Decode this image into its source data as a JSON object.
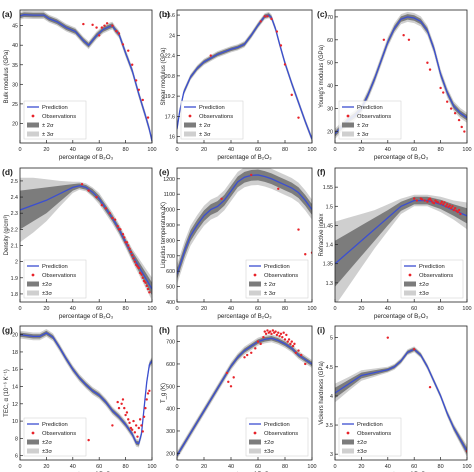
{
  "colors": {
    "prediction": "#3b4fd1",
    "observations": "#e8232a",
    "band2": "#7c7c7c",
    "band3": "#cfcfcf"
  },
  "chart_data": [
    {
      "type": "line",
      "panel": "(a)",
      "xlabel": "percentage of B₂O₃",
      "ylabel": "Bulk modulus (GPa)",
      "xlim": [
        0,
        100
      ],
      "ylim": [
        15,
        49
      ],
      "xticks": [
        0,
        20,
        40,
        60,
        80,
        100
      ],
      "yticks": [
        20,
        25,
        30,
        35,
        40,
        45
      ],
      "legend": {
        "placement": "bottom-left",
        "entries": [
          "Prediction",
          "Observations",
          "± 2σ",
          "± 3σ"
        ]
      },
      "prediction": {
        "x": [
          0,
          3,
          10,
          18,
          22,
          28,
          35,
          42,
          48,
          52,
          58,
          63,
          68,
          70,
          72,
          75,
          80,
          85,
          90,
          95,
          98,
          100
        ],
        "y": [
          47.5,
          47.8,
          47.7,
          47.7,
          46.8,
          46,
          44.5,
          43.5,
          41.2,
          40,
          42.5,
          44,
          44.8,
          45,
          44,
          42.8,
          38,
          33.5,
          27.5,
          22,
          18.5,
          15.5
        ]
      },
      "band2_halfwidth": 0.6,
      "band3_halfwidth": 1.0,
      "observations": {
        "x": [
          48,
          55,
          58,
          60,
          62,
          64,
          66,
          70,
          73,
          75,
          78,
          82,
          85,
          88,
          90,
          93,
          97
        ],
        "y": [
          45.4,
          45.2,
          44.5,
          42.5,
          44.5,
          45,
          45.6,
          45,
          43.6,
          43,
          40.2,
          38.6,
          35,
          31,
          28.6,
          26,
          21.5
        ]
      }
    },
    {
      "type": "line",
      "panel": "(b)",
      "xlabel": "percentage of B₂O₃",
      "ylabel": "Shear modulus (GPa)",
      "xlim": [
        0,
        100
      ],
      "ylim": [
        15.5,
        26
      ],
      "xticks": [
        0,
        20,
        40,
        60,
        80,
        100
      ],
      "yticks": [
        16.0,
        17.6,
        19.2,
        20.8,
        22.4,
        24.0,
        25.6
      ],
      "legend": {
        "placement": "bottom-left",
        "entries": [
          "Prediction",
          "Observations",
          "± 2σ",
          "± 3σ"
        ]
      },
      "prediction": {
        "x": [
          0,
          2,
          5,
          10,
          15,
          20,
          25,
          30,
          35,
          40,
          45,
          50,
          55,
          60,
          65,
          68,
          70,
          73,
          76,
          80,
          85,
          90,
          95,
          100
        ],
        "y": [
          16.6,
          18,
          19.5,
          20.7,
          21.4,
          21.9,
          22.2,
          22.5,
          22.7,
          22.9,
          23.05,
          23.3,
          24,
          24.8,
          25.5,
          25.6,
          25.4,
          24.5,
          23.3,
          21.8,
          20.2,
          18.7,
          17.2,
          15.8
        ]
      },
      "band2_halfwidth": 0.15,
      "band3_halfwidth": 0.25,
      "observations": {
        "x": [
          25,
          62,
          65,
          67,
          70,
          74,
          77,
          80,
          85,
          90
        ],
        "y": [
          22.4,
          25.1,
          25.5,
          25.5,
          25.3,
          24.3,
          23.2,
          21.7,
          19.3,
          17.5
        ]
      }
    },
    {
      "type": "line",
      "panel": "(c)",
      "xlabel": "percentage of B₂O₃",
      "ylabel": "Young's modulus (GPa)",
      "xlim": [
        0,
        100
      ],
      "ylim": [
        15,
        73
      ],
      "xticks": [
        0,
        20,
        40,
        60,
        80,
        100
      ],
      "yticks": [
        20,
        30,
        40,
        50,
        60,
        70
      ],
      "legend": {
        "placement": "bottom-left",
        "entries": [
          "Prediction",
          "Observations",
          "± 2σ",
          "± 3σ"
        ]
      },
      "prediction": {
        "x": [
          0,
          5,
          10,
          15,
          20,
          25,
          30,
          35,
          40,
          45,
          50,
          55,
          60,
          65,
          70,
          75,
          80,
          85,
          90,
          95,
          100
        ],
        "y": [
          19,
          22,
          25,
          27,
          30,
          36,
          43,
          51,
          59,
          65,
          69,
          70,
          69.5,
          68,
          64,
          56,
          45,
          37,
          31,
          28,
          26
        ]
      },
      "band2_halfwidth": 1.2,
      "band3_halfwidth": 2.2,
      "observations": {
        "x": [
          37,
          52,
          56,
          70,
          72,
          80,
          82,
          85,
          88,
          91,
          94,
          96,
          98
        ],
        "y": [
          60,
          62,
          60,
          50,
          47,
          39,
          37,
          33,
          30,
          28,
          25,
          22,
          20
        ]
      }
    },
    {
      "type": "line",
      "panel": "(d)",
      "xlabel": "percentage of B₂O₃",
      "ylabel": "Density (g/cm³)",
      "xlim": [
        0,
        100
      ],
      "ylim": [
        1.75,
        2.58
      ],
      "xticks": [
        0,
        20,
        40,
        60,
        80,
        100
      ],
      "yticks": [
        1.8,
        1.9,
        2.0,
        2.1,
        2.2,
        2.3,
        2.4,
        2.5
      ],
      "legend": {
        "placement": "bottom-left",
        "entries": [
          "Prediction",
          "Observations",
          "±2σ",
          "±3σ"
        ]
      },
      "prediction": {
        "x": [
          0,
          10,
          20,
          30,
          40,
          45,
          50,
          55,
          60,
          65,
          70,
          75,
          80,
          85,
          90,
          95,
          100
        ],
        "y": [
          2.32,
          2.35,
          2.38,
          2.42,
          2.46,
          2.47,
          2.46,
          2.43,
          2.39,
          2.33,
          2.27,
          2.2,
          2.12,
          2.04,
          1.97,
          1.9,
          1.83
        ]
      },
      "band2_halfwidth": [
        0.12,
        0.1,
        0.08,
        0.05,
        0.02,
        0.015,
        0.015,
        0.02,
        0.02,
        0.02,
        0.02,
        0.02,
        0.02,
        0.025,
        0.03,
        0.035,
        0.04
      ],
      "band3_halfwidth": [
        0.2,
        0.17,
        0.13,
        0.08,
        0.035,
        0.025,
        0.025,
        0.03,
        0.035,
        0.035,
        0.035,
        0.035,
        0.035,
        0.04,
        0.05,
        0.06,
        0.07
      ],
      "observations": {
        "x": [
          47,
          52,
          58,
          62,
          65,
          68,
          70,
          72,
          74,
          75,
          76,
          78,
          79,
          80,
          81,
          82,
          83,
          84,
          85,
          86,
          87,
          88,
          89,
          90,
          91,
          92,
          93,
          94,
          95,
          96,
          97,
          98
        ],
        "y": [
          2.48,
          2.44,
          2.4,
          2.35,
          2.33,
          2.3,
          2.27,
          2.26,
          2.22,
          2.2,
          2.2,
          2.17,
          2.15,
          2.12,
          2.12,
          2.1,
          2.08,
          2.06,
          2.04,
          2.02,
          2.0,
          1.98,
          1.97,
          1.96,
          1.93,
          1.92,
          1.9,
          1.88,
          1.87,
          1.85,
          1.83,
          1.81
        ]
      }
    },
    {
      "type": "line",
      "panel": "(e)",
      "xlabel": "percentage of B₂O₃",
      "ylabel": "Liquidus temperature (K)",
      "xlim": [
        0,
        100
      ],
      "ylim": [
        400,
        1270
      ],
      "xticks": [
        0,
        20,
        40,
        60,
        80,
        100
      ],
      "yticks": [
        400,
        500,
        600,
        700,
        800,
        900,
        1000,
        1100,
        1200
      ],
      "legend": {
        "placement": "bottom-right",
        "entries": [
          "Prediction",
          "Observations",
          "± 2σ",
          "± 3σ"
        ]
      },
      "prediction": {
        "x": [
          0,
          3,
          6,
          10,
          15,
          20,
          25,
          30,
          35,
          40,
          45,
          50,
          55,
          60,
          65,
          70,
          75,
          80,
          85,
          90,
          95,
          100
        ],
        "y": [
          580,
          660,
          740,
          830,
          900,
          960,
          1000,
          1020,
          1060,
          1120,
          1180,
          1210,
          1222,
          1225,
          1215,
          1200,
          1180,
          1160,
          1140,
          1110,
          1060,
          1000
        ]
      },
      "band2_halfwidth": 35,
      "band3_halfwidth": 65,
      "observations": {
        "x": [
          33,
          55,
          75,
          90,
          95,
          100
        ],
        "y": [
          1070,
          1225,
          1135,
          870,
          710,
          720
        ]
      }
    },
    {
      "type": "line",
      "panel": "(f)",
      "xlabel": "percentage of B₂O₃",
      "ylabel": "Refractive index",
      "xlim": [
        0,
        100
      ],
      "ylim": [
        1.25,
        1.6
      ],
      "xticks": [
        0,
        20,
        40,
        60,
        80,
        100
      ],
      "yticks": [
        1.3,
        1.35,
        1.4,
        1.45,
        1.5,
        1.55
      ],
      "legend": {
        "placement": "bottom-right",
        "entries": [
          "Prediction",
          "Observations",
          "±2σ",
          "±3σ"
        ]
      },
      "prediction": {
        "x": [
          0,
          10,
          20,
          30,
          40,
          50,
          60,
          70,
          80,
          90,
          100
        ],
        "y": [
          1.35,
          1.38,
          1.41,
          1.44,
          1.47,
          1.5,
          1.515,
          1.515,
          1.505,
          1.49,
          1.475
        ]
      },
      "band2_halfwidth": [
        0.06,
        0.05,
        0.04,
        0.03,
        0.02,
        0.012,
        0.01,
        0.01,
        0.012,
        0.015,
        0.02
      ],
      "band3_halfwidth": [
        0.11,
        0.09,
        0.07,
        0.05,
        0.035,
        0.02,
        0.015,
        0.015,
        0.02,
        0.025,
        0.035
      ],
      "observations": {
        "x": [
          60,
          62,
          65,
          66,
          68,
          70,
          71,
          72,
          73,
          74,
          75,
          76,
          77,
          78,
          80,
          81,
          82,
          83,
          84,
          85,
          86,
          87,
          88,
          89,
          90,
          91,
          92,
          93,
          94,
          95
        ],
        "y": [
          1.52,
          1.515,
          1.52,
          1.518,
          1.515,
          1.512,
          1.518,
          1.52,
          1.515,
          1.51,
          1.508,
          1.515,
          1.512,
          1.51,
          1.507,
          1.512,
          1.505,
          1.51,
          1.5,
          1.505,
          1.498,
          1.502,
          1.495,
          1.5,
          1.49,
          1.495,
          1.488,
          1.485,
          1.49,
          1.48
        ]
      }
    },
    {
      "type": "line",
      "panel": "(g)",
      "xlabel": "percentage of B₂O₃",
      "ylabel": "TEC, α (10⁻⁶ K⁻¹)",
      "xlim": [
        0,
        100
      ],
      "ylim": [
        5.5,
        21
      ],
      "xticks": [
        0,
        20,
        40,
        60,
        80,
        100
      ],
      "yticks": [
        6,
        8,
        10,
        12,
        14,
        16,
        18,
        20
      ],
      "legend": {
        "placement": "bottom-left",
        "entries": [
          "Prediction",
          "Observations",
          "±2σ",
          "±3σ"
        ]
      },
      "prediction": {
        "x": [
          0,
          5,
          10,
          15,
          20,
          25,
          30,
          35,
          40,
          45,
          50,
          55,
          60,
          65,
          70,
          75,
          80,
          85,
          88,
          90,
          92,
          94,
          96,
          98,
          100
        ],
        "y": [
          20,
          19.9,
          19.8,
          19.8,
          20.2,
          19.7,
          18.5,
          17.2,
          16,
          15,
          14.2,
          13.5,
          13,
          12.2,
          11.2,
          10.5,
          9.6,
          8.5,
          7.5,
          7.4,
          8.5,
          11.5,
          14.5,
          16.5,
          17
        ]
      },
      "band2_halfwidth": 0.25,
      "band3_halfwidth": 0.45,
      "observations": {
        "x": [
          52,
          70,
          74,
          75,
          77,
          78,
          79,
          80,
          81,
          82,
          83,
          84,
          85,
          86,
          87,
          88,
          89,
          90,
          91,
          92,
          93,
          94,
          95,
          96,
          97,
          98
        ],
        "y": [
          7.8,
          9.5,
          12.2,
          11.5,
          12,
          12.5,
          11.5,
          10.7,
          11,
          10.2,
          9.8,
          9.2,
          9,
          10,
          8.7,
          9.5,
          8.2,
          9.2,
          10.2,
          9.5,
          8.8,
          10.5,
          11.5,
          12.5,
          13.2,
          13.5
        ]
      }
    },
    {
      "type": "line",
      "panel": "(h)",
      "xlabel": "percentage of B₂O₃",
      "ylabel": "T_g (K)",
      "xlim": [
        0,
        100
      ],
      "ylim": [
        170,
        770
      ],
      "xticks": [
        0,
        20,
        40,
        60,
        80,
        100
      ],
      "yticks": [
        200,
        300,
        400,
        500,
        600,
        700
      ],
      "legend": {
        "placement": "bottom-right",
        "entries": [
          "Prediction",
          "Observations",
          "±2σ",
          "±3σ"
        ]
      },
      "prediction": {
        "x": [
          0,
          5,
          10,
          15,
          20,
          25,
          30,
          35,
          40,
          45,
          50,
          55,
          60,
          65,
          70,
          75,
          80,
          85,
          90,
          95,
          100
        ],
        "y": [
          190,
          240,
          290,
          340,
          390,
          440,
          490,
          540,
          590,
          630,
          660,
          680,
          700,
          710,
          715,
          705,
          690,
          670,
          640,
          620,
          600
        ]
      },
      "band2_halfwidth": 10,
      "band3_halfwidth": 18,
      "observations": {
        "x": [
          37,
          38,
          40,
          42,
          50,
          52,
          55,
          58,
          60,
          62,
          64,
          65,
          66,
          67,
          68,
          69,
          70,
          71,
          72,
          73,
          74,
          75,
          76,
          77,
          78,
          79,
          80,
          81,
          82,
          83,
          84,
          85,
          86,
          87,
          88,
          90,
          92,
          95
        ],
        "y": [
          560,
          520,
          500,
          540,
          630,
          640,
          650,
          670,
          700,
          690,
          720,
          745,
          735,
          750,
          740,
          745,
          735,
          750,
          740,
          745,
          730,
          740,
          725,
          735,
          720,
          740,
          710,
          730,
          700,
          710,
          690,
          700,
          680,
          690,
          650,
          660,
          640,
          600
        ]
      }
    },
    {
      "type": "line",
      "panel": "(i)",
      "xlabel": "percentage of B₂O₃",
      "ylabel": "Vickers hardness (GPa)",
      "xlim": [
        0,
        100
      ],
      "ylim": [
        2.9,
        5.2
      ],
      "xticks": [
        0,
        20,
        40,
        60,
        80,
        100
      ],
      "yticks": [
        3.0,
        3.5,
        4.0,
        4.5,
        5.0
      ],
      "legend": {
        "placement": "bottom-left",
        "entries": [
          "Prediction",
          "Observations",
          "±2σ",
          "±3σ"
        ]
      },
      "prediction": {
        "x": [
          0,
          10,
          20,
          30,
          40,
          45,
          50,
          55,
          60,
          65,
          70,
          75,
          80,
          85,
          90,
          95,
          100
        ],
        "y": [
          4.05,
          4.2,
          4.35,
          4.4,
          4.45,
          4.5,
          4.6,
          4.75,
          4.8,
          4.7,
          4.5,
          4.25,
          4.0,
          3.7,
          3.45,
          3.25,
          3.05
        ]
      },
      "band2_halfwidth": [
        0.09,
        0.07,
        0.05,
        0.04,
        0.03,
        0.03,
        0.03,
        0.03,
        0.03,
        0.03,
        0.03,
        0.03,
        0.03,
        0.035,
        0.04,
        0.05,
        0.06
      ],
      "band3_halfwidth": [
        0.16,
        0.12,
        0.09,
        0.07,
        0.05,
        0.05,
        0.05,
        0.05,
        0.05,
        0.05,
        0.05,
        0.05,
        0.05,
        0.06,
        0.07,
        0.08,
        0.1
      ],
      "observations": {
        "x": [
          40,
          60,
          72,
          100
        ],
        "y": [
          5.0,
          4.8,
          4.15,
          3.05
        ]
      }
    }
  ]
}
